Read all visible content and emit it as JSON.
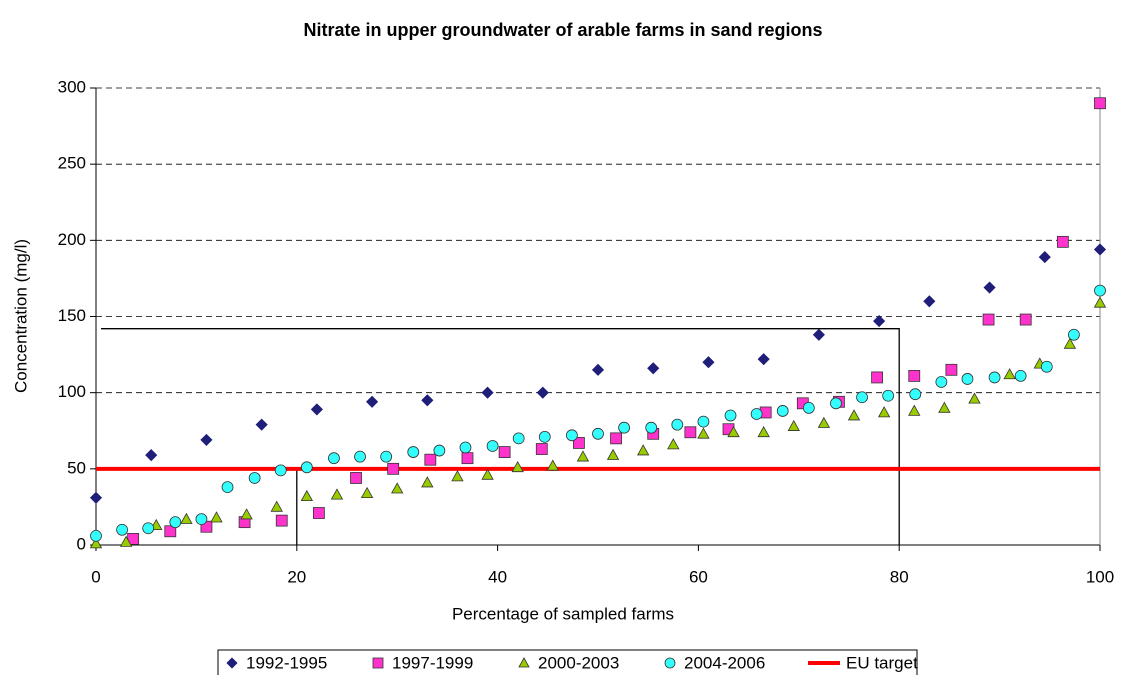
{
  "chart_data": {
    "type": "scatter",
    "title": "Nitrate in upper groundwater of arable farms in sand regions",
    "x_label": "Percentage of sampled farms",
    "y_label": "Concentration (mg/l)",
    "xlim": [
      0,
      100
    ],
    "xticks": [
      0,
      20,
      40,
      60,
      80,
      100
    ],
    "ylim": [
      0,
      300
    ],
    "yticks": [
      0,
      50,
      100,
      150,
      200,
      250,
      300
    ],
    "grid": true,
    "legend": "bottom",
    "series": [
      {
        "name": "1992-1995",
        "marker": "diamond",
        "color": "#1f1f7a",
        "x": [
          0,
          5.5,
          11,
          16.5,
          22,
          27.5,
          33,
          39,
          44.5,
          50,
          55.5,
          61,
          66.5,
          72,
          78,
          83,
          89,
          94.5,
          100
        ],
        "values": [
          31,
          59,
          69,
          79,
          89,
          94,
          95,
          100,
          100,
          115,
          116,
          120,
          122,
          138,
          147,
          160,
          169,
          189,
          194
        ]
      },
      {
        "name": "1997-1999",
        "marker": "square",
        "color": "#ff33cc",
        "x": [
          3.7,
          7.4,
          11,
          14.8,
          18.5,
          22.2,
          25.9,
          29.6,
          33.3,
          37,
          40.7,
          44.4,
          48.1,
          51.8,
          55.5,
          59.2,
          63,
          66.7,
          70.4,
          74,
          77.8,
          81.5,
          85.2,
          88.9,
          92.6,
          96.3,
          100
        ],
        "values": [
          4,
          9,
          12,
          15,
          16,
          21,
          44,
          50,
          56,
          57,
          61,
          63,
          67,
          70,
          73,
          74,
          76,
          87,
          93,
          94,
          110,
          111,
          115,
          148,
          148,
          199,
          290
        ]
      },
      {
        "name": "2000-2003",
        "marker": "triangle",
        "color": "#99cc00",
        "x": [
          0,
          3,
          6,
          9,
          12,
          15,
          18,
          21,
          24,
          27,
          30,
          33,
          36,
          39,
          42,
          45.5,
          48.5,
          51.5,
          54.5,
          57.5,
          60.5,
          63.5,
          66.5,
          69.5,
          72.5,
          75.5,
          78.5,
          81.5,
          84.5,
          87.5,
          91,
          94,
          97,
          100
        ],
        "values": [
          1,
          2,
          13,
          17,
          18,
          20,
          25,
          32,
          33,
          34,
          37,
          41,
          45,
          46,
          51,
          52,
          58,
          59,
          62,
          66,
          73,
          74,
          74,
          78,
          80,
          85,
          87,
          88,
          90,
          96,
          112,
          119,
          132,
          159
        ]
      },
      {
        "name": "2004-2006",
        "marker": "circle",
        "color": "#33ffff",
        "x": [
          0,
          2.6,
          5.2,
          7.9,
          10.5,
          13.1,
          15.8,
          18.4,
          21,
          23.7,
          26.3,
          28.9,
          31.6,
          34.2,
          36.8,
          39.5,
          42.1,
          44.7,
          47.4,
          50,
          52.6,
          55.3,
          57.9,
          60.5,
          63.2,
          65.8,
          68.4,
          71,
          73.7,
          76.3,
          78.9,
          81.6,
          84.2,
          86.8,
          89.5,
          92.1,
          94.7,
          97.4,
          100
        ],
        "values": [
          6,
          10,
          11,
          15,
          17,
          38,
          44,
          49,
          51,
          57,
          58,
          58,
          61,
          62,
          64,
          65,
          70,
          71,
          72,
          73,
          77,
          77,
          79,
          81,
          85,
          86,
          88,
          90,
          93,
          97,
          98,
          99,
          107,
          109,
          110,
          111,
          117,
          138,
          167
        ]
      }
    ],
    "target": {
      "name": "EU target",
      "value": 50,
      "color": "#ff0000"
    },
    "guide_lines": [
      {
        "x": [
          0.5,
          80,
          80
        ],
        "y": [
          142,
          142,
          0
        ]
      },
      {
        "x": [
          20,
          20
        ],
        "y": [
          0,
          50
        ]
      }
    ]
  }
}
